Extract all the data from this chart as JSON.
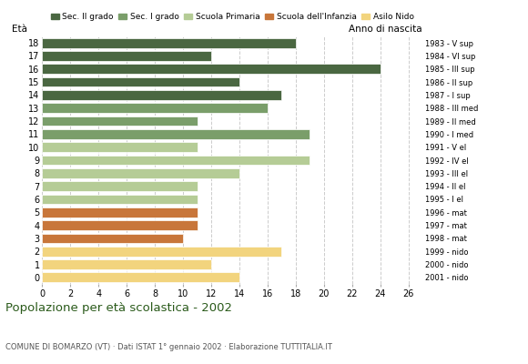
{
  "ages": [
    18,
    17,
    16,
    15,
    14,
    13,
    12,
    11,
    10,
    9,
    8,
    7,
    6,
    5,
    4,
    3,
    2,
    1,
    0
  ],
  "values": [
    18,
    12,
    24,
    14,
    17,
    16,
    11,
    19,
    11,
    19,
    14,
    11,
    11,
    11,
    11,
    10,
    17,
    12,
    14
  ],
  "anno_nascita": [
    "1983 - V sup",
    "1984 - VI sup",
    "1985 - III sup",
    "1986 - II sup",
    "1987 - I sup",
    "1988 - III med",
    "1989 - II med",
    "1990 - I med",
    "1991 - V el",
    "1992 - IV el",
    "1993 - III el",
    "1994 - II el",
    "1995 - I el",
    "1996 - mat",
    "1997 - mat",
    "1998 - mat",
    "1999 - nido",
    "2000 - nido",
    "2001 - nido"
  ],
  "colors": [
    "#4a6741",
    "#4a6741",
    "#4a6741",
    "#4a6741",
    "#4a6741",
    "#7a9e6a",
    "#7a9e6a",
    "#7a9e6a",
    "#b5cc96",
    "#b5cc96",
    "#b5cc96",
    "#b5cc96",
    "#b5cc96",
    "#c8763a",
    "#c8763a",
    "#c8763a",
    "#f2d47e",
    "#f2d47e",
    "#f2d47e"
  ],
  "legend_labels": [
    "Sec. II grado",
    "Sec. I grado",
    "Scuola Primaria",
    "Scuola dell'Infanzia",
    "Asilo Nido"
  ],
  "legend_colors": [
    "#4a6741",
    "#7a9e6a",
    "#b5cc96",
    "#c8763a",
    "#f2d47e"
  ],
  "title": "Popolazione per età scolastica - 2002",
  "subtitle": "COMUNE DI BOMARZO (VT) · Dati ISTAT 1° gennaio 2002 · Elaborazione TUTTITALIA.IT",
  "xlim": [
    0,
    27
  ],
  "xticks": [
    0,
    2,
    4,
    6,
    8,
    10,
    12,
    14,
    16,
    18,
    20,
    22,
    24,
    26
  ],
  "ylabel_text": "Età",
  "ylabel2_text": "Anno di nascita",
  "background_color": "#ffffff"
}
